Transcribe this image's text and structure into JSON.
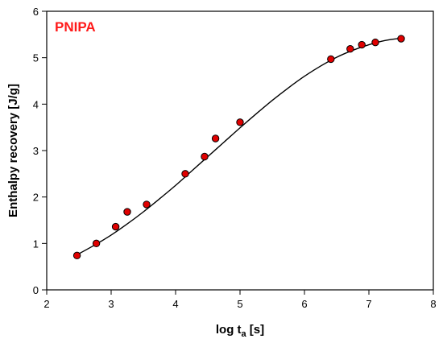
{
  "chart_data": {
    "type": "scatter",
    "title": "PNIPA",
    "title_color": "#ff1a1a",
    "xlabel": "log t",
    "xlabel_subscript": "a",
    "xlabel_suffix": " [s]",
    "ylabel": "Enthalpy recovery [J/g]",
    "xlim": [
      2,
      8
    ],
    "ylim": [
      0,
      6
    ],
    "x_ticks": [
      "2",
      "3",
      "4",
      "5",
      "6",
      "7",
      "8"
    ],
    "y_ticks": [
      "0",
      "1",
      "2",
      "3",
      "4",
      "5",
      "6"
    ],
    "grid": false,
    "marker_color": "#e00000",
    "marker_edge": "#000000",
    "series": [
      {
        "x": [
          2.47,
          2.77,
          3.07,
          3.25,
          3.55,
          4.15,
          4.45,
          4.62,
          5.0,
          6.41,
          6.71,
          6.89,
          7.1,
          7.5
        ],
        "y": [
          0.74,
          1.0,
          1.36,
          1.68,
          1.84,
          2.5,
          2.87,
          3.26,
          3.61,
          4.97,
          5.19,
          5.28,
          5.33,
          5.41
        ]
      }
    ],
    "fit_curve": {
      "x": [
        2.45,
        2.75,
        3.0,
        3.25,
        3.5,
        3.75,
        4.0,
        4.25,
        4.5,
        4.75,
        5.0,
        5.25,
        5.5,
        5.75,
        6.0,
        6.25,
        6.5,
        6.75,
        7.0,
        7.25,
        7.5
      ],
      "y": [
        0.74,
        0.97,
        1.18,
        1.42,
        1.68,
        1.96,
        2.25,
        2.56,
        2.87,
        3.18,
        3.49,
        3.79,
        4.08,
        4.35,
        4.6,
        4.82,
        5.01,
        5.16,
        5.28,
        5.37,
        5.42
      ]
    }
  }
}
